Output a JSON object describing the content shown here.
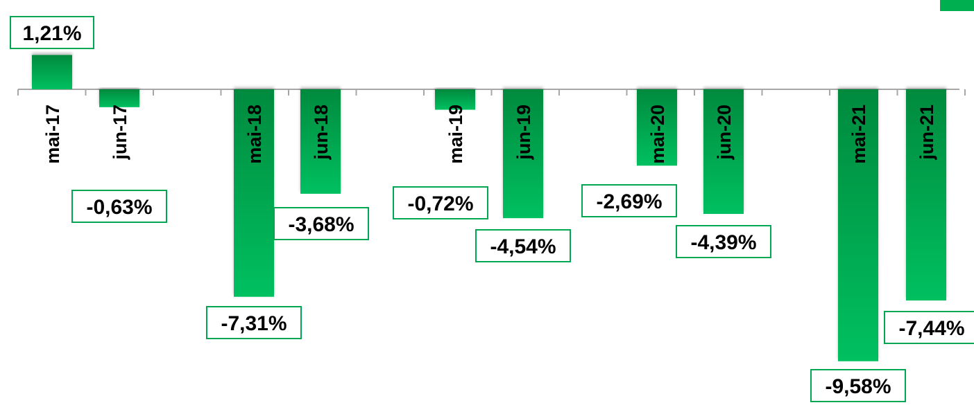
{
  "chart_data": {
    "type": "bar",
    "categories": [
      "mai-17",
      "jun-17",
      "mai-18",
      "jun-18",
      "mai-19",
      "jun-19",
      "mai-20",
      "jun-20",
      "mai-21",
      "jun-21"
    ],
    "values": [
      1.21,
      -0.63,
      -7.31,
      -3.68,
      -0.72,
      -4.54,
      -2.69,
      -4.39,
      -9.58,
      -7.44
    ],
    "data_labels": [
      "1,21%",
      "-0,63%",
      "-7,31%",
      "-3,68%",
      "-0,72%",
      "-4,54%",
      "-2,69%",
      "-4,39%",
      "-9,58%",
      "-7,44%"
    ],
    "unit": "%",
    "ylim": [
      -10.5,
      2.5
    ],
    "title": "",
    "xlabel": "",
    "ylabel": "",
    "grid": false,
    "legend": "none",
    "colors": {
      "bar_dark": "#008a3e",
      "bar_light": "#00c060",
      "label_border": "#00a651",
      "axis": "#a6a6a6",
      "corner_mark": "#00b050"
    }
  }
}
